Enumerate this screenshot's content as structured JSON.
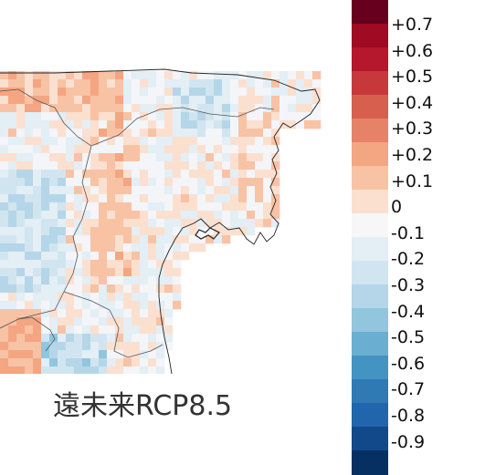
{
  "caption": "遠未来RCP8.5",
  "colorbar": {
    "colors": [
      "#67001f",
      "#9e0b22",
      "#b5172c",
      "#c6383c",
      "#d6604d",
      "#e58267",
      "#f4a582",
      "#f8c2a5",
      "#fbe0d0",
      "#f7f7f7",
      "#e3eef5",
      "#d1e5f0",
      "#b4d6e8",
      "#92c5de",
      "#6aaed2",
      "#4393c3",
      "#2f79b5",
      "#2166ac",
      "#12498a",
      "#053061"
    ],
    "tick_labels": [
      "+0.7",
      "+0.6",
      "+0.5",
      "+0.4",
      "+0.3",
      "+0.2",
      "+0.1",
      "0",
      "-0.1",
      "-0.2",
      "-0.3",
      "-0.4",
      "-0.5",
      "-0.6",
      "-0.7",
      "-0.8",
      "-0.9"
    ]
  },
  "map": {
    "coastline_color": "#222222",
    "border_color": "#444444",
    "land_base_color": "#f3f5f8"
  }
}
